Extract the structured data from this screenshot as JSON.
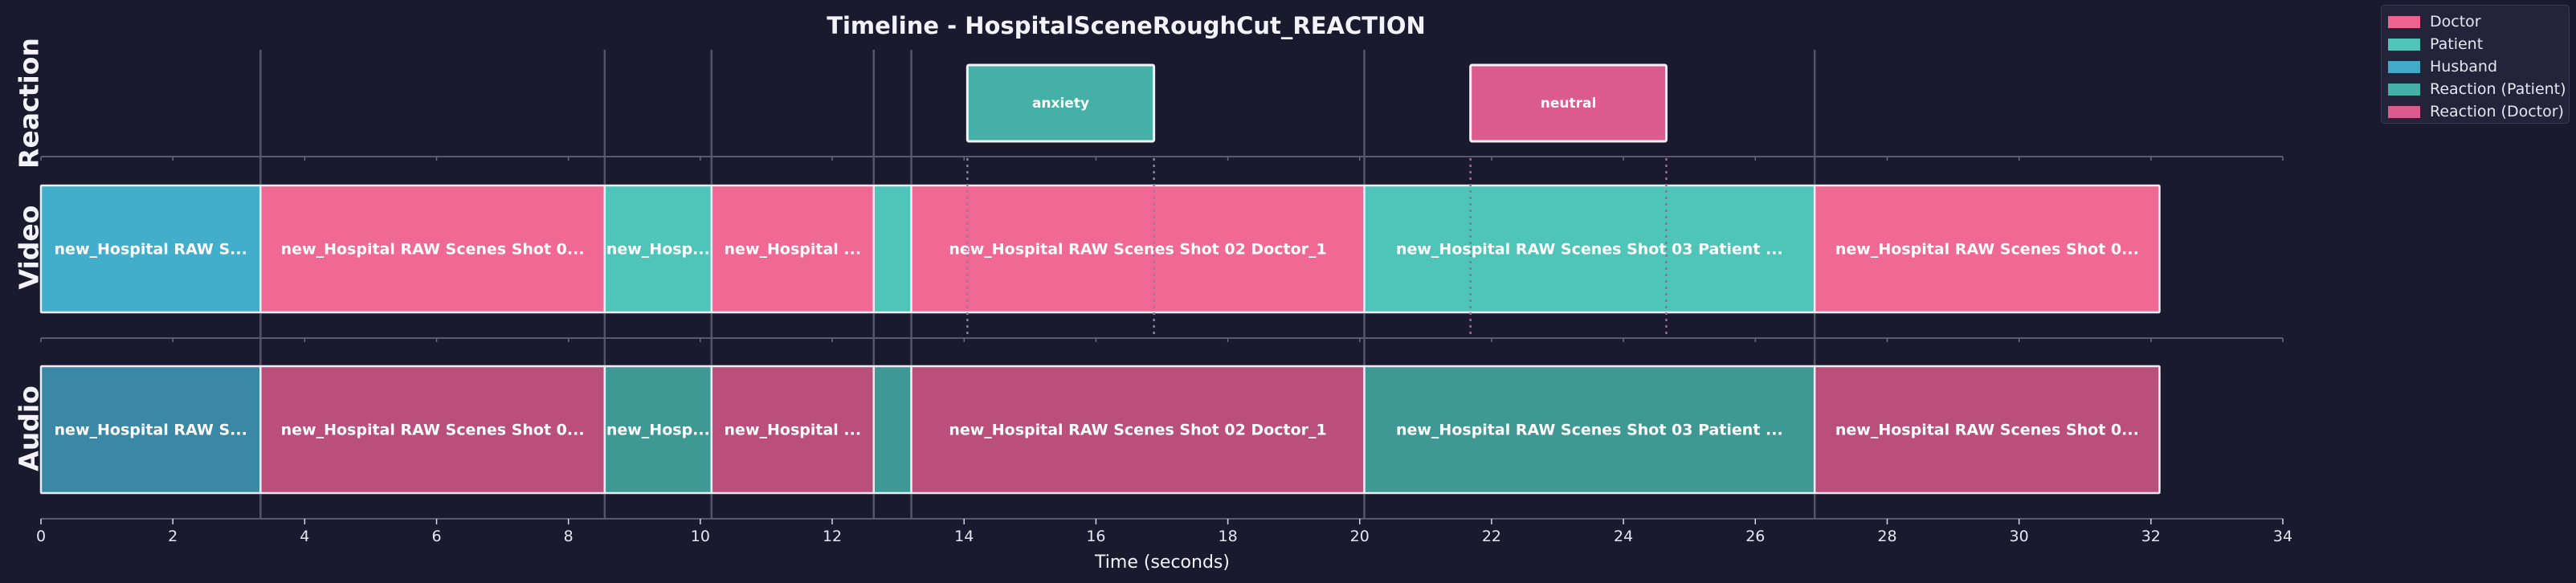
{
  "chart_data": {
    "type": "timeline",
    "title": "Timeline - HospitalSceneRoughCut_REACTION",
    "xlabel": "Time (seconds)",
    "xlim": [
      0,
      34
    ],
    "xticks": [
      0,
      2,
      4,
      6,
      8,
      10,
      12,
      14,
      16,
      18,
      20,
      22,
      24,
      26,
      28,
      30,
      32,
      34
    ],
    "tracks": [
      "Reaction",
      "Video",
      "Audio"
    ],
    "cut_lines": [
      3.33,
      8.55,
      10.17,
      12.63,
      13.2,
      20.07,
      26.9
    ],
    "video_clips": [
      {
        "start": 0.0,
        "end": 3.33,
        "label": "new_Hospital RAW S...",
        "category": "Husband"
      },
      {
        "start": 3.33,
        "end": 8.55,
        "label": "new_Hospital RAW Scenes Shot 0...",
        "category": "Doctor"
      },
      {
        "start": 8.55,
        "end": 10.17,
        "label": "new_Hosp...",
        "category": "Patient"
      },
      {
        "start": 10.17,
        "end": 12.63,
        "label": "new_Hospital ...",
        "category": "Doctor"
      },
      {
        "start": 12.63,
        "end": 13.2,
        "label": "",
        "category": "Patient"
      },
      {
        "start": 13.2,
        "end": 20.07,
        "label": "new_Hospital RAW Scenes Shot 02 Doctor_1",
        "category": "Doctor"
      },
      {
        "start": 20.07,
        "end": 26.9,
        "label": "new_Hospital RAW Scenes Shot 03 Patient ...",
        "category": "Patient"
      },
      {
        "start": 26.9,
        "end": 32.13,
        "label": "new_Hospital RAW Scenes Shot 0...",
        "category": "Doctor"
      }
    ],
    "audio_clips": [
      {
        "start": 0.0,
        "end": 3.33,
        "label": "new_Hospital RAW S...",
        "category": "Husband"
      },
      {
        "start": 3.33,
        "end": 8.55,
        "label": "new_Hospital RAW Scenes Shot 0...",
        "category": "Doctor"
      },
      {
        "start": 8.55,
        "end": 10.17,
        "label": "new_Hosp...",
        "category": "Patient"
      },
      {
        "start": 10.17,
        "end": 12.63,
        "label": "new_Hospital ...",
        "category": "Doctor"
      },
      {
        "start": 12.63,
        "end": 13.2,
        "label": "",
        "category": "Patient"
      },
      {
        "start": 13.2,
        "end": 20.07,
        "label": "new_Hospital RAW Scenes Shot 02 Doctor_1",
        "category": "Doctor"
      },
      {
        "start": 20.07,
        "end": 26.9,
        "label": "new_Hospital RAW Scenes Shot 03 Patient ...",
        "category": "Patient"
      },
      {
        "start": 26.9,
        "end": 32.13,
        "label": "new_Hospital RAW Scenes Shot 0...",
        "category": "Doctor"
      }
    ],
    "reactions": [
      {
        "start": 14.05,
        "end": 16.88,
        "label": "anxiety",
        "category": "Reaction (Patient)"
      },
      {
        "start": 21.68,
        "end": 24.65,
        "label": "neutral",
        "category": "Reaction (Doctor)"
      }
    ],
    "legend": [
      {
        "label": "Doctor",
        "color": "#f06292"
      },
      {
        "label": "Patient",
        "color": "#4ec5b8"
      },
      {
        "label": "Husband",
        "color": "#42a9c9"
      },
      {
        "label": "Reaction (Patient)",
        "color": "#45b0a8"
      },
      {
        "label": "Reaction (Doctor)",
        "color": "#dc5b8d"
      }
    ],
    "legend_position": "top-right",
    "colors": {
      "background": "#1a1a2e",
      "video": {
        "Doctor": "#f06894",
        "Patient": "#4ec5b8",
        "Husband": "#42aecb"
      },
      "audio": {
        "Doctor": "#b94f7a",
        "Patient": "#3e9894",
        "Husband": "#3a88a6"
      },
      "reaction": {
        "Reaction (Patient)": "#45b0a8",
        "Reaction (Doctor)": "#dc5b8d"
      }
    }
  }
}
